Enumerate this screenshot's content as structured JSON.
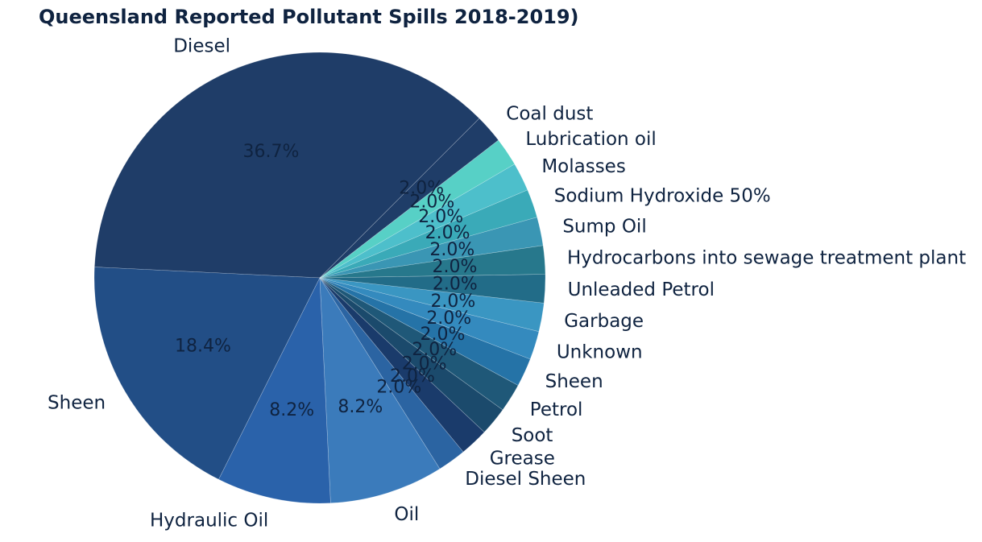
{
  "chart_data": {
    "type": "pie",
    "title": "Queensland Reported Pollutant Spills 2018-2019)",
    "start_angle_deg": 45,
    "direction": "counterclockwise",
    "slices": [
      {
        "label": "Diesel",
        "value": 18,
        "pct_label": "36.7%",
        "color": "#1f3d68"
      },
      {
        "label": "Sheen",
        "value": 9,
        "pct_label": "18.4%",
        "color": "#224e86"
      },
      {
        "label": "Hydraulic Oil",
        "value": 4,
        "pct_label": "8.2%",
        "color": "#2a62aa"
      },
      {
        "label": "Oil",
        "value": 4,
        "pct_label": "8.2%",
        "color": "#3b7bbb"
      },
      {
        "label": "Diesel Sheen",
        "value": 1,
        "pct_label": "2.0%",
        "color": "#2b64a2"
      },
      {
        "label": "Grease",
        "value": 1,
        "pct_label": "2.0%",
        "color": "#1a3b6b"
      },
      {
        "label": "Soot",
        "value": 1,
        "pct_label": "2.0%",
        "color": "#1b4a6c"
      },
      {
        "label": "Petrol",
        "value": 1,
        "pct_label": "2.0%",
        "color": "#1f5878"
      },
      {
        "label": "Sheen",
        "value": 1,
        "pct_label": "2.0%",
        "color": "#2573a7"
      },
      {
        "label": "Unknown",
        "value": 1,
        "pct_label": "2.0%",
        "color": "#348abe"
      },
      {
        "label": "Garbage",
        "value": 1,
        "pct_label": "2.0%",
        "color": "#3a96c2"
      },
      {
        "label": "Unleaded Petrol",
        "value": 1,
        "pct_label": "2.0%",
        "color": "#226c88"
      },
      {
        "label": "Hydrocarbons into sewage treatment plant",
        "value": 1,
        "pct_label": "2.0%",
        "color": "#27788c"
      },
      {
        "label": "Sump Oil",
        "value": 1,
        "pct_label": "2.0%",
        "color": "#3a96b4"
      },
      {
        "label": "Sodium Hydroxide 50%",
        "value": 1,
        "pct_label": "2.0%",
        "color": "#3aaab8"
      },
      {
        "label": "Molasses",
        "value": 1,
        "pct_label": "2.0%",
        "color": "#4dbfcb"
      },
      {
        "label": "Lubrication oil",
        "value": 1,
        "pct_label": "2.0%",
        "color": "#57d0c6"
      },
      {
        "label": "Coal dust",
        "value": 1,
        "pct_label": "2.0%",
        "color": "#1f3d68"
      }
    ]
  }
}
